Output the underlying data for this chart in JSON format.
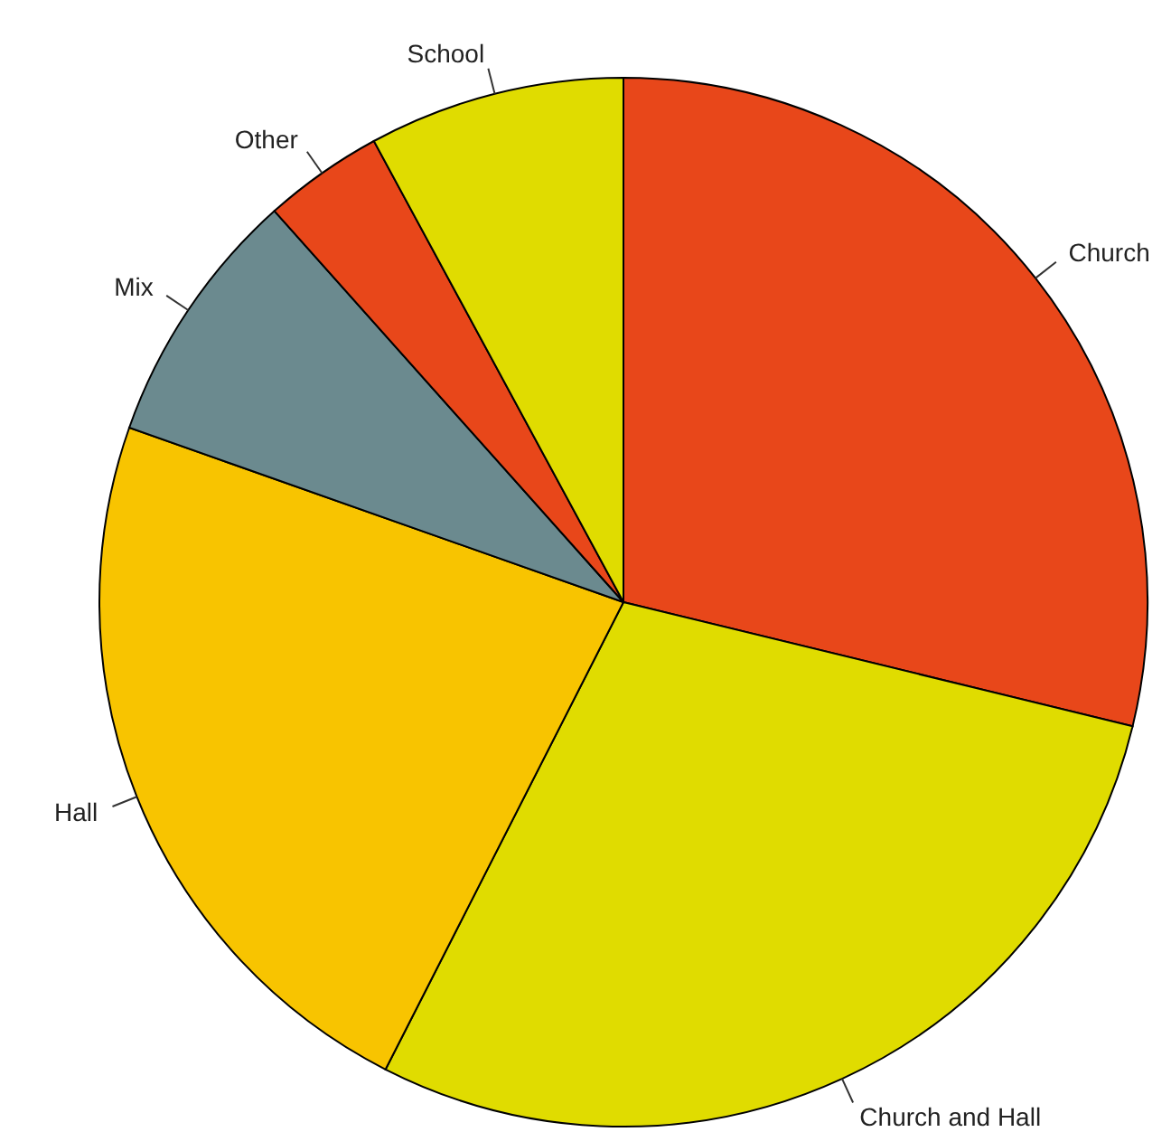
{
  "chart_data": {
    "type": "pie",
    "categories": [
      "Church",
      "Church and Hall",
      "Hall",
      "Mix",
      "Other",
      "School"
    ],
    "values": [
      28.8,
      28.7,
      22.9,
      8.0,
      3.7,
      7.9
    ],
    "colors": [
      "#e8471a",
      "#e0dc00",
      "#f8c400",
      "#6b8a8f",
      "#e8471a",
      "#e0dc00"
    ],
    "legend": false
  }
}
